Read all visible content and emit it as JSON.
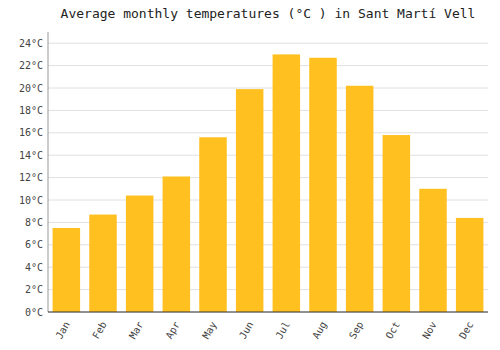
{
  "chart_data": {
    "type": "bar",
    "title": "Average monthly temperatures (°C ) in Sant Martí Vell",
    "categories": [
      "Jan",
      "Feb",
      "Mar",
      "Apr",
      "May",
      "Jun",
      "Jul",
      "Aug",
      "Sep",
      "Oct",
      "Nov",
      "Dec"
    ],
    "values": [
      7.5,
      8.7,
      10.4,
      12.1,
      15.6,
      19.9,
      23.0,
      22.7,
      20.2,
      15.8,
      11.0,
      8.4
    ],
    "color": "#FFC020",
    "ylim": [
      0,
      25
    ],
    "yticks": [
      {
        "value": 0,
        "label": "0°C"
      },
      {
        "value": 2,
        "label": "2°C"
      },
      {
        "value": 4,
        "label": "4°C"
      },
      {
        "value": 6,
        "label": "6°C"
      },
      {
        "value": 8,
        "label": "8°C"
      },
      {
        "value": 10,
        "label": "10°C"
      },
      {
        "value": 12,
        "label": "12°C"
      },
      {
        "value": 14,
        "label": "14°C"
      },
      {
        "value": 16,
        "label": "16°C"
      },
      {
        "value": 18,
        "label": "18°C"
      },
      {
        "value": 20,
        "label": "20°C"
      },
      {
        "value": 22,
        "label": "22°C"
      },
      {
        "value": 24,
        "label": "24°C"
      }
    ],
    "grid": true
  }
}
